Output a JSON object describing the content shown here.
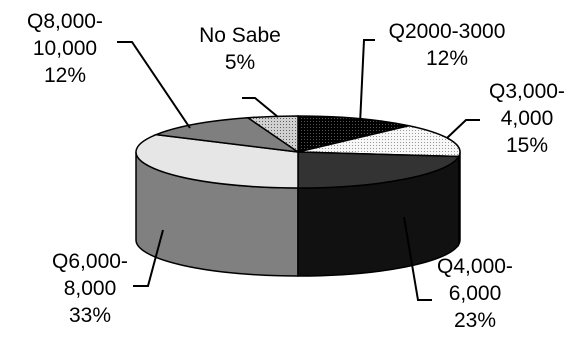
{
  "chart_data": {
    "type": "pie",
    "style": "3d",
    "slices": [
      {
        "label_lines": [
          "Q2000-3000"
        ],
        "value": 12,
        "display": "12%",
        "top_color": "#000000",
        "side_color": "#000000",
        "pattern": "dots-dark"
      },
      {
        "label_lines": [
          "Q3,000-",
          "4,000"
        ],
        "value": 15,
        "display": "15%",
        "top_color": "#f2f2f2",
        "side_color": "#d9d9d9",
        "pattern": "dots-light"
      },
      {
        "label_lines": [
          "Q4,000-",
          "6,000"
        ],
        "value": 23,
        "display": "23%",
        "top_color": "#333333",
        "side_color": "#111111",
        "pattern": "none"
      },
      {
        "label_lines": [
          "Q6,000-",
          "8,000"
        ],
        "value": 33,
        "display": "33%",
        "top_color": "#e6e6e6",
        "side_color": "#808080",
        "pattern": "none"
      },
      {
        "label_lines": [
          "Q8,000-",
          "10,000"
        ],
        "value": 12,
        "display": "12%",
        "top_color": "#7f7f7f",
        "side_color": "#555555",
        "pattern": "none"
      },
      {
        "label_lines": [
          "No Sabe"
        ],
        "value": 5,
        "display": "5%",
        "top_color": "#bfbfbf",
        "side_color": "#8c8c8c",
        "pattern": "dots-mid"
      }
    ],
    "legend": "none",
    "data_labels": "category-and-percent"
  }
}
